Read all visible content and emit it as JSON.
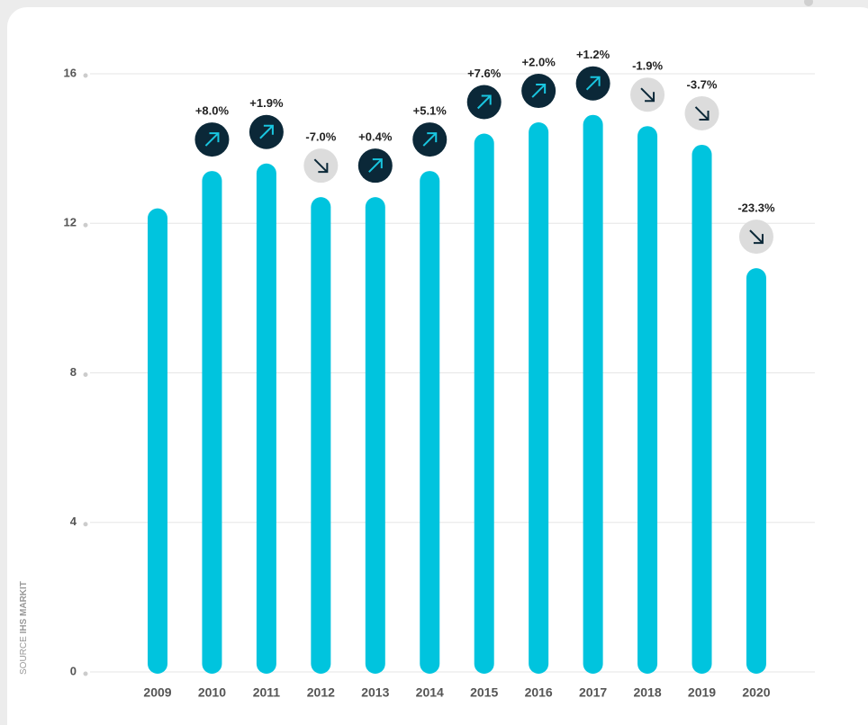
{
  "chart_data": {
    "type": "bar",
    "categories": [
      "2009",
      "2010",
      "2011",
      "2012",
      "2013",
      "2014",
      "2015",
      "2016",
      "2017",
      "2018",
      "2019",
      "2020"
    ],
    "values": [
      12.4,
      13.4,
      13.6,
      12.7,
      12.7,
      13.4,
      14.4,
      14.7,
      14.9,
      14.6,
      14.1,
      10.8
    ],
    "annotations": [
      null,
      "+8.0%",
      "+1.9%",
      "-7.0%",
      "+0.4%",
      "+5.1%",
      "+7.6%",
      "+2.0%",
      "+1.2%",
      "-1.9%",
      "-3.7%",
      "-23.3%"
    ],
    "color": "#00c4de",
    "ylim": [
      0,
      16
    ],
    "yticks": [
      0,
      4,
      8,
      12,
      16
    ],
    "grid": true,
    "source": {
      "label": "SOURCE",
      "name": "IHS MARKIT"
    }
  }
}
